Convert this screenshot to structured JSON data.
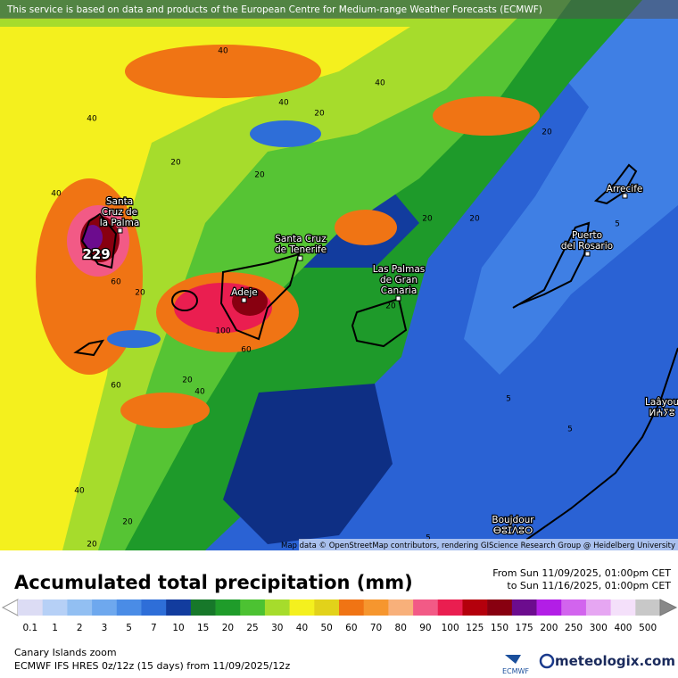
{
  "header": {
    "notice": "This service is based on data and products of the European Centre for Medium-range Weather Forecasts (ECMWF)"
  },
  "map": {
    "places": [
      {
        "lines": [
          "Santa",
          "Cruz de",
          "la Palma"
        ]
      },
      {
        "lines": [
          "Santa Cruz",
          "de Tenerife"
        ]
      },
      {
        "lines": [
          "Las Palmas",
          "de Gran",
          "Canaria"
        ]
      },
      {
        "lines": [
          "Arrecife"
        ]
      },
      {
        "lines": [
          "Puerto",
          "del Rosario"
        ]
      },
      {
        "lines": [
          "Adeje"
        ]
      },
      {
        "lines": [
          "Laâyou",
          "ⵍⵄⵢⵓ"
        ]
      },
      {
        "lines": [
          "Boujdour",
          "ⴱⵓⵊⴷⵓⵔ"
        ]
      }
    ],
    "max_value": 229,
    "contour_labels": [
      40,
      40,
      40,
      20,
      40,
      20,
      20,
      20,
      40,
      20,
      20,
      5,
      60,
      20,
      20,
      100,
      60,
      20,
      40,
      60,
      5,
      5,
      40,
      20,
      20,
      5
    ],
    "attribution": "Map data © OpenStreetMap contributors, rendering GIScience Research Group @ Heidelberg University"
  },
  "title": "Accumulated total precipitation (mm)",
  "period": {
    "from": "From Sun 11/09/2025, 01:00pm CET",
    "to": "to Sun 11/16/2025, 01:00pm CET"
  },
  "legend": {
    "levels": [
      {
        "value": 0.1,
        "color": "#dcdcf4"
      },
      {
        "value": 1,
        "color": "#b6d0f6"
      },
      {
        "value": 2,
        "color": "#92bff2"
      },
      {
        "value": 3,
        "color": "#6ea8ee"
      },
      {
        "value": 5,
        "color": "#4a8ce6"
      },
      {
        "value": 7,
        "color": "#2e6ed8"
      },
      {
        "value": 10,
        "color": "#123c9e"
      },
      {
        "value": 15,
        "color": "#17782a"
      },
      {
        "value": 20,
        "color": "#1f9c2a"
      },
      {
        "value": 25,
        "color": "#4cc232"
      },
      {
        "value": 30,
        "color": "#a6dc2c"
      },
      {
        "value": 40,
        "color": "#f4f01e"
      },
      {
        "value": 50,
        "color": "#e2d21a"
      },
      {
        "value": 60,
        "color": "#f07414"
      },
      {
        "value": 70,
        "color": "#f6962e"
      },
      {
        "value": 80,
        "color": "#f8b07a"
      },
      {
        "value": 90,
        "color": "#f25a86"
      },
      {
        "value": 100,
        "color": "#ea1e50"
      },
      {
        "value": 125,
        "color": "#b4000c"
      },
      {
        "value": 150,
        "color": "#880010"
      },
      {
        "value": 175,
        "color": "#6c0c8e"
      },
      {
        "value": 200,
        "color": "#b21ee6"
      },
      {
        "value": 250,
        "color": "#d264ee"
      },
      {
        "value": 300,
        "color": "#e6a6f2"
      },
      {
        "value": 400,
        "color": "#f4e0fa"
      },
      {
        "value": 500,
        "color": "#c8c8c8"
      }
    ]
  },
  "footer": {
    "product": "Canary Islands zoom",
    "model": "ECMWF IFS HRES 0z/12z (15 days) from 11/09/2025/12z",
    "logo1": "ECMWF",
    "logo2": "meteologix.com"
  }
}
